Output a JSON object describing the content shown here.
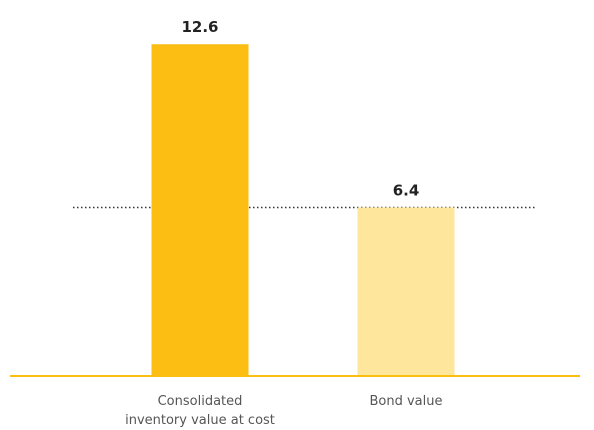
{
  "chart_data": {
    "type": "bar",
    "categories": [
      [
        "Consolidated",
        "inventory value at cost"
      ],
      [
        "Bond value"
      ]
    ],
    "values": [
      12.6,
      6.4
    ],
    "value_labels": [
      "12.6",
      "6.4"
    ],
    "reference_line": 6.4,
    "ylim": [
      0,
      14.28
    ],
    "grid": false,
    "legend": "none",
    "colors": {
      "bars": [
        "#FCBE13",
        "#FEE69D"
      ],
      "baseline": "#FCBE13",
      "reference_line": "#333333"
    }
  }
}
